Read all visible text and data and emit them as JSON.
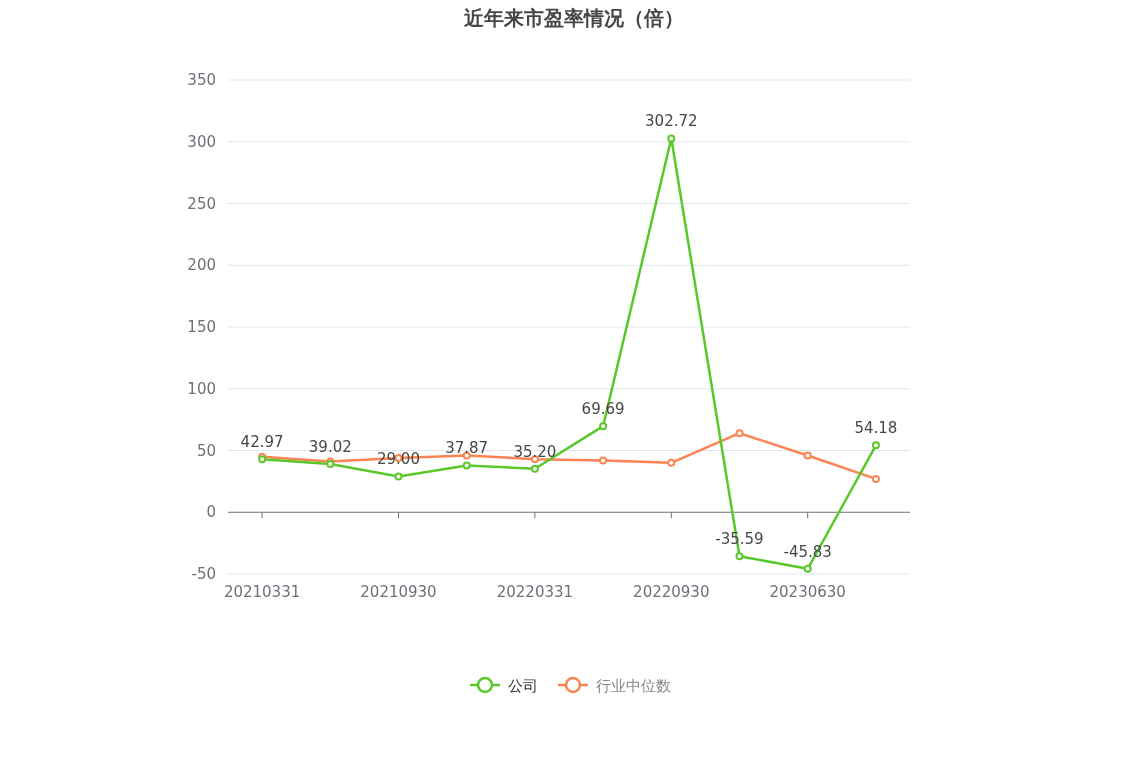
{
  "chart_data": {
    "type": "line",
    "title": "近年来市盈率情况（倍）",
    "categories": [
      "20210331",
      null,
      "20210930",
      null,
      "20220331",
      null,
      "20220930",
      null,
      "20230630",
      null
    ],
    "series": [
      {
        "name": "公司",
        "color": "#5ac82a",
        "values": [
          42.97,
          39.02,
          29.0,
          37.87,
          35.2,
          69.69,
          302.72,
          -35.59,
          -45.83,
          54.18
        ],
        "value_labels": [
          "42.97",
          "39.02",
          "29.00",
          "37.87",
          "35.20",
          "69.69",
          "302.72",
          "-35.59",
          "-45.83",
          "54.18"
        ]
      },
      {
        "name": "行业中位数",
        "color": "#fc8452",
        "values": [
          45,
          41,
          44,
          46,
          43,
          42,
          40,
          64,
          46,
          27
        ]
      }
    ],
    "ylim": [
      -50,
      350
    ],
    "yticks": [
      -50,
      0,
      50,
      100,
      150,
      200,
      250,
      300,
      350
    ],
    "grid": "y",
    "legend": "bottom",
    "marker": "circle",
    "line_style": "solid"
  }
}
